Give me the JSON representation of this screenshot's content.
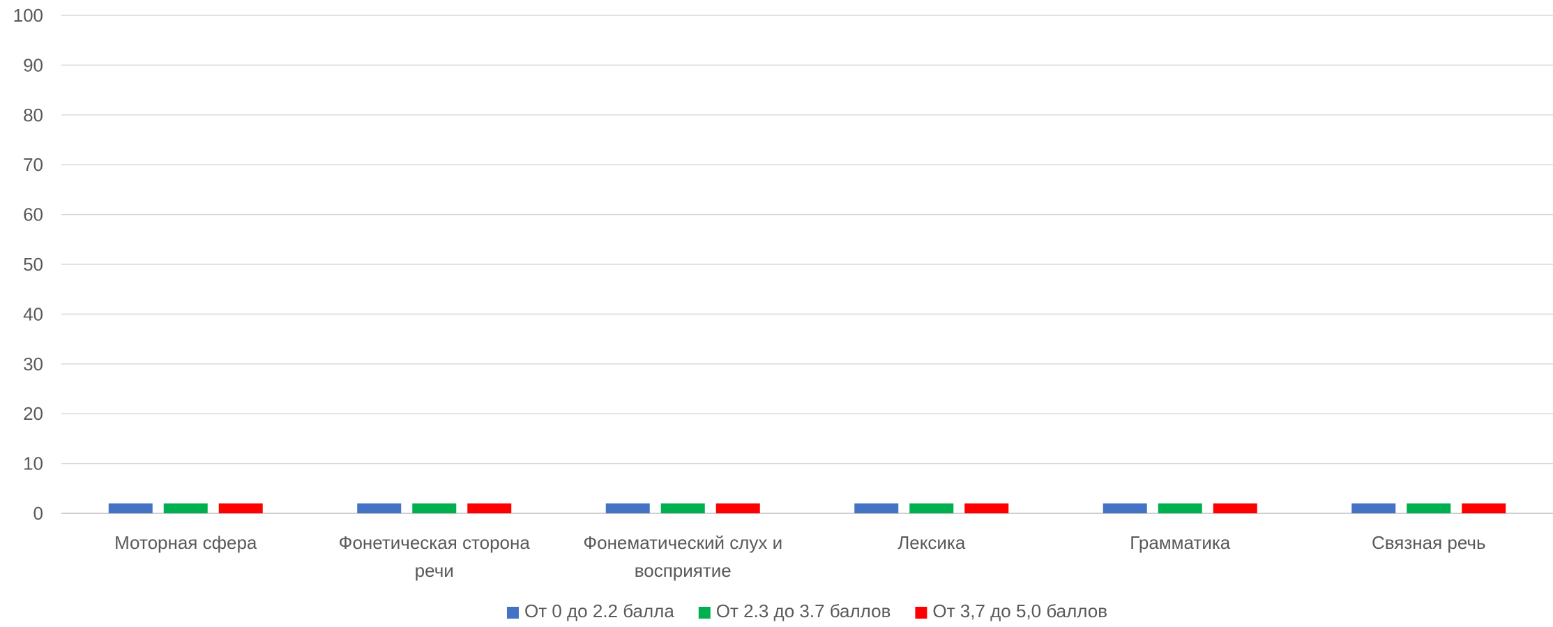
{
  "chart_data": {
    "type": "bar",
    "title": "",
    "xlabel": "",
    "ylabel": "",
    "ylim": [
      0,
      100
    ],
    "yticks": [
      0,
      10,
      20,
      30,
      40,
      50,
      60,
      70,
      80,
      90,
      100
    ],
    "grid": true,
    "legend_position": "bottom",
    "categories": [
      [
        "Моторная сфера"
      ],
      [
        "Фонетическая сторона",
        "речи"
      ],
      [
        "Фонематический слух и",
        "восприятие"
      ],
      [
        "Лексика"
      ],
      [
        "Грамматика"
      ],
      [
        "Связная речь"
      ]
    ],
    "series": [
      {
        "name": "От 0 до 2.2 балла",
        "color": "#4472C4",
        "values": [
          2,
          2,
          2,
          2,
          2,
          2
        ]
      },
      {
        "name": "От 2.3 до 3.7 баллов",
        "color": "#00B050",
        "values": [
          2,
          2,
          2,
          2,
          2,
          2
        ]
      },
      {
        "name": "От 3,7 до 5,0 баллов",
        "color": "#FF0000",
        "values": [
          2,
          2,
          2,
          2,
          2,
          2
        ]
      }
    ]
  }
}
